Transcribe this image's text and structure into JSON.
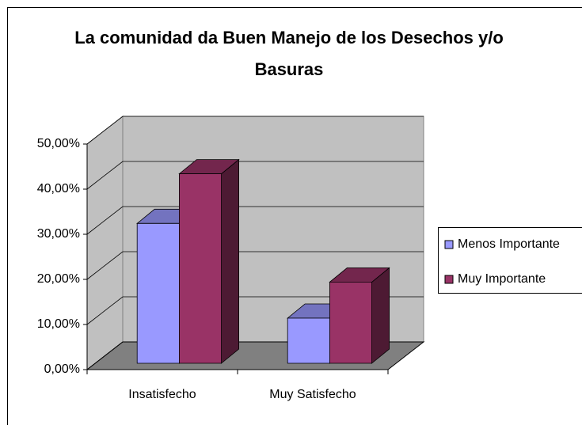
{
  "chart_data": {
    "type": "bar3d",
    "title": "La comunidad da Buen Manejo de los Desechos y/o Basuras",
    "categories": [
      "Insatisfecho",
      "Muy Satisfecho"
    ],
    "series": [
      {
        "name": "Menos Importante",
        "color": "#9999ff",
        "values": [
          31,
          10
        ]
      },
      {
        "name": "Muy Importante",
        "color": "#993366",
        "values": [
          42,
          18
        ]
      }
    ],
    "ylim": [
      0,
      50
    ],
    "yticks": [
      {
        "value": 0,
        "label": "0,00%"
      },
      {
        "value": 10,
        "label": "10,00%"
      },
      {
        "value": 20,
        "label": "20,00%"
      },
      {
        "value": 30,
        "label": "30,00%"
      },
      {
        "value": 40,
        "label": "40,00%"
      },
      {
        "value": 50,
        "label": "50,00%"
      }
    ],
    "grid": true,
    "legend": "right"
  }
}
